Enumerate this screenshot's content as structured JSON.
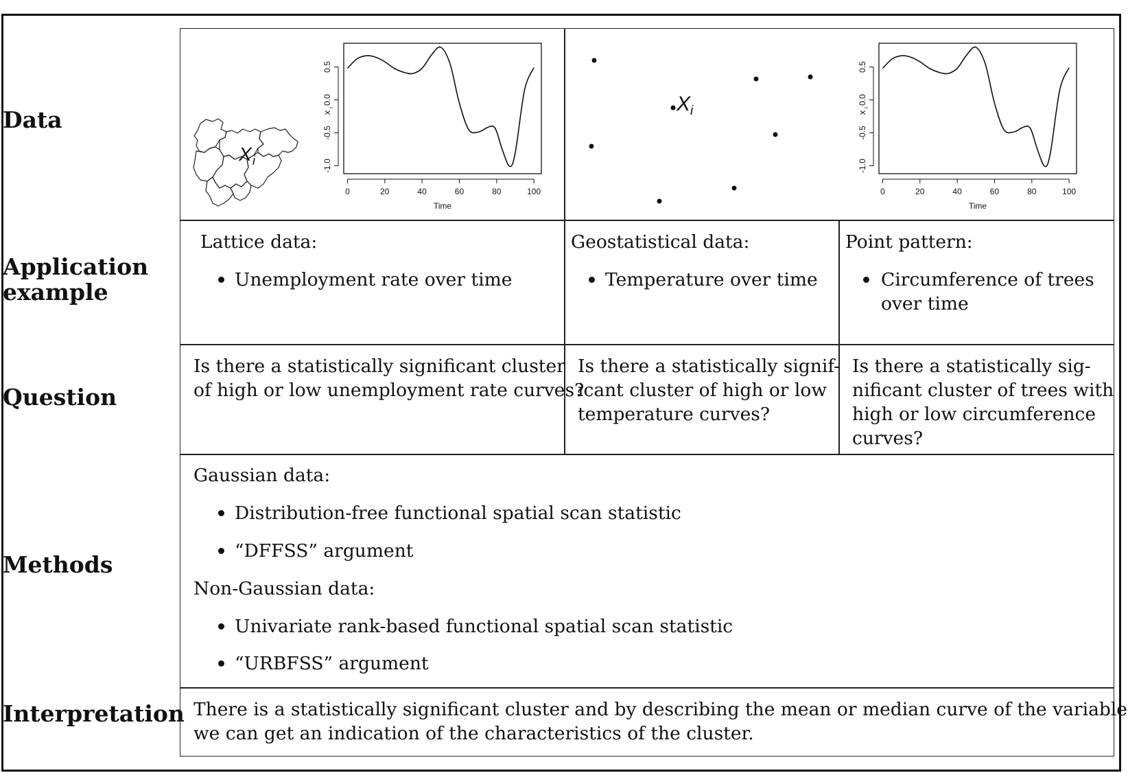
{
  "rows": {
    "data": "Data",
    "application_line1": "Application",
    "application_line2": "example",
    "question": "Question",
    "methods": "Methods",
    "interpretation": "Interpretation"
  },
  "data_panels": {
    "lattice_map_label": "X",
    "lattice_map_sub": "i",
    "point_label": "X",
    "point_sub": "i"
  },
  "plot": {
    "xlabel": "Time",
    "ylabel": "x",
    "ylabel_sub": "i"
  },
  "chart_data": [
    {
      "type": "line",
      "xlabel": "Time",
      "ylabel": "xi",
      "xlim": [
        0,
        100
      ],
      "ylim": [
        -1.0,
        0.8
      ],
      "xticks": [
        "0",
        "20",
        "40",
        "60",
        "80",
        "100"
      ],
      "yticks": [
        "0.5",
        "0.0",
        "-0.5",
        "-1.0"
      ],
      "x": [
        0,
        5,
        10,
        15,
        20,
        25,
        30,
        35,
        40,
        45,
        50,
        55,
        60,
        65,
        70,
        75,
        78,
        80,
        83,
        87,
        90,
        95,
        100
      ],
      "values": [
        0.48,
        0.62,
        0.67,
        0.65,
        0.58,
        0.48,
        0.42,
        0.4,
        0.48,
        0.68,
        0.8,
        0.55,
        -0.05,
        -0.45,
        -0.49,
        -0.42,
        -0.4,
        -0.48,
        -0.75,
        -1.01,
        -0.8,
        0.15,
        0.49
      ]
    },
    {
      "type": "line",
      "xlabel": "Time",
      "ylabel": "xi",
      "xlim": [
        0,
        100
      ],
      "ylim": [
        -1.0,
        0.8
      ],
      "xticks": [
        "0",
        "20",
        "40",
        "60",
        "80",
        "100"
      ],
      "yticks": [
        "0.5",
        "0.0",
        "-0.5",
        "-1.0"
      ],
      "x": [
        0,
        5,
        10,
        15,
        20,
        25,
        30,
        35,
        40,
        45,
        50,
        55,
        60,
        65,
        70,
        75,
        78,
        80,
        83,
        87,
        90,
        95,
        100
      ],
      "values": [
        0.48,
        0.62,
        0.67,
        0.65,
        0.58,
        0.48,
        0.42,
        0.4,
        0.48,
        0.68,
        0.8,
        0.55,
        -0.05,
        -0.45,
        -0.49,
        -0.42,
        -0.4,
        -0.48,
        -0.75,
        -1.01,
        -0.8,
        0.15,
        0.49
      ]
    }
  ],
  "application": {
    "lattice_heading": "Lattice data:",
    "lattice_item": "Unemployment rate over time",
    "geo_heading": "Geostatistical data:",
    "geo_item": "Temperature over time",
    "point_heading": "Point pattern:",
    "point_item_line1": "Circumference of trees",
    "point_item_line2": "over time"
  },
  "question": {
    "lattice_line1": "Is there a statistically significant cluster",
    "lattice_line2": "of high or low unemployment rate curves?",
    "geo_line1": "Is there a statistically signif-",
    "geo_line2": "icant cluster of high or low",
    "geo_line3": "temperature curves?",
    "point_line1": "Is there a statistically sig-",
    "point_line2": "nificant cluster of trees with",
    "point_line3": "high or low circumference",
    "point_line4": "curves?"
  },
  "methods": {
    "gaussian_heading": "Gaussian data:",
    "gaussian_item1": "Distribution-free functional spatial scan statistic",
    "gaussian_item2": "“DFFSS” argument",
    "nongaussian_heading": "Non-Gaussian data:",
    "nongaussian_item1": "Univariate rank-based functional spatial scan statistic",
    "nongaussian_item2": "“URBFSS” argument"
  },
  "interpretation": {
    "line1": "There is a statistically significant cluster and by describing the mean or median curve of the variable,",
    "line2": "we can get an indication of the characteristics of the cluster."
  }
}
